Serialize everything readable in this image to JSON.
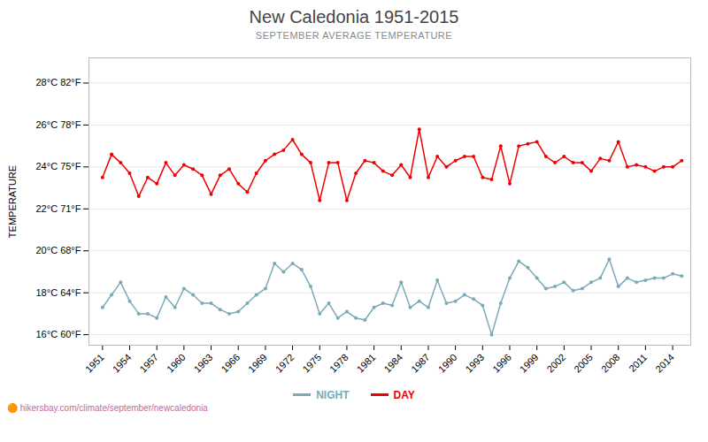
{
  "chart_data": {
    "type": "line",
    "title": "New Caledonia 1951-2015",
    "subtitle": "SEPTEMBER AVERAGE TEMPERATURE",
    "y_label": "TEMPERATURE",
    "x": [
      1951,
      1952,
      1953,
      1954,
      1955,
      1956,
      1957,
      1958,
      1959,
      1960,
      1961,
      1962,
      1963,
      1964,
      1965,
      1966,
      1967,
      1968,
      1969,
      1970,
      1971,
      1972,
      1973,
      1974,
      1975,
      1976,
      1977,
      1978,
      1979,
      1980,
      1981,
      1982,
      1983,
      1984,
      1985,
      1986,
      1987,
      1988,
      1989,
      1990,
      1991,
      1992,
      1993,
      1994,
      1995,
      1996,
      1997,
      1998,
      1999,
      2000,
      2001,
      2002,
      2003,
      2004,
      2005,
      2006,
      2007,
      2008,
      2009,
      2010,
      2011,
      2012,
      2013,
      2014,
      2015
    ],
    "series": [
      {
        "name": "NIGHT",
        "color": "#7aaab8",
        "marker": "circle",
        "values": [
          17.3,
          17.9,
          18.5,
          17.6,
          17.0,
          17.0,
          16.8,
          17.8,
          17.3,
          18.2,
          17.9,
          17.5,
          17.5,
          17.2,
          17.0,
          17.1,
          17.5,
          17.9,
          18.2,
          19.4,
          19.0,
          19.4,
          19.1,
          18.3,
          17.0,
          17.5,
          16.8,
          17.1,
          16.8,
          16.7,
          17.3,
          17.5,
          17.4,
          18.5,
          17.3,
          17.6,
          17.3,
          18.6,
          17.5,
          17.6,
          17.9,
          17.7,
          17.4,
          16.0,
          17.5,
          18.7,
          19.5,
          19.2,
          18.7,
          18.2,
          18.3,
          18.5,
          18.1,
          18.2,
          18.5,
          18.7,
          19.6,
          18.3,
          18.7,
          18.5,
          18.6,
          18.7,
          18.7,
          18.9,
          18.8
        ]
      },
      {
        "name": "DAY",
        "color": "#ee0000",
        "marker": "circle",
        "values": [
          23.5,
          24.6,
          24.2,
          23.7,
          22.6,
          23.5,
          23.2,
          24.2,
          23.6,
          24.1,
          23.9,
          23.6,
          22.7,
          23.6,
          23.9,
          23.2,
          22.8,
          23.7,
          24.3,
          24.6,
          24.8,
          25.3,
          24.6,
          24.2,
          22.4,
          24.2,
          24.2,
          22.4,
          23.7,
          24.3,
          24.2,
          23.8,
          23.6,
          24.1,
          23.5,
          25.8,
          23.5,
          24.5,
          24.0,
          24.3,
          24.5,
          24.5,
          23.5,
          23.4,
          25.0,
          23.2,
          25.0,
          25.1,
          25.2,
          24.5,
          24.2,
          24.5,
          24.2,
          24.2,
          23.8,
          24.4,
          24.3,
          25.2,
          24.0,
          24.1,
          24.0,
          23.8,
          24.0,
          24.0,
          24.3
        ]
      }
    ],
    "xlim": [
      1949.5,
      2016.0
    ],
    "xticks": [
      1951,
      1954,
      1957,
      1960,
      1963,
      1966,
      1969,
      1972,
      1975,
      1978,
      1981,
      1984,
      1987,
      1990,
      1993,
      1996,
      1999,
      2002,
      2005,
      2008,
      2011,
      2014
    ],
    "ylim": [
      15.5,
      29.2
    ],
    "yticks": [
      {
        "value": 16,
        "label": "16°C 60°F"
      },
      {
        "value": 18,
        "label": "18°C 64°F"
      },
      {
        "value": 20,
        "label": "20°C 68°F"
      },
      {
        "value": 22,
        "label": "22°C 71°F"
      },
      {
        "value": 24,
        "label": "24°C 75°F"
      },
      {
        "value": 26,
        "label": "26°C 78°F"
      },
      {
        "value": 28,
        "label": "28°C 82°F"
      }
    ],
    "grid": "y",
    "legend": "bottom",
    "annotations": [
      "🟠 hikersbay.com/climate/september/newcaledonia"
    ]
  }
}
